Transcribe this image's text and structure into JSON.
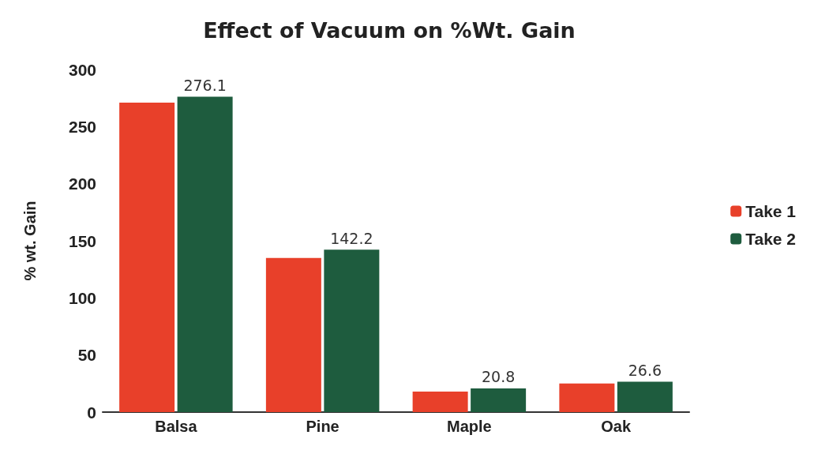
{
  "chart_data": {
    "type": "bar",
    "title": "Effect of Vacuum on %Wt. Gain",
    "ylabel": "% wt. Gain",
    "categories": [
      "Balsa",
      "Pine",
      "Maple",
      "Oak"
    ],
    "series": [
      {
        "name": "Take 1",
        "color": "#e8402a",
        "values": [
          271,
          135,
          18,
          25
        ]
      },
      {
        "name": "Take 2",
        "color": "#1e5c3e",
        "values": [
          276.1,
          142.2,
          20.8,
          26.6
        ],
        "value_labels": [
          "276.1",
          "142.2",
          "20.8",
          "26.6"
        ]
      }
    ],
    "ylim": [
      0,
      300
    ],
    "yticks": [
      0,
      50,
      100,
      150,
      200,
      250,
      300
    ],
    "grid": false,
    "legend": "right"
  }
}
